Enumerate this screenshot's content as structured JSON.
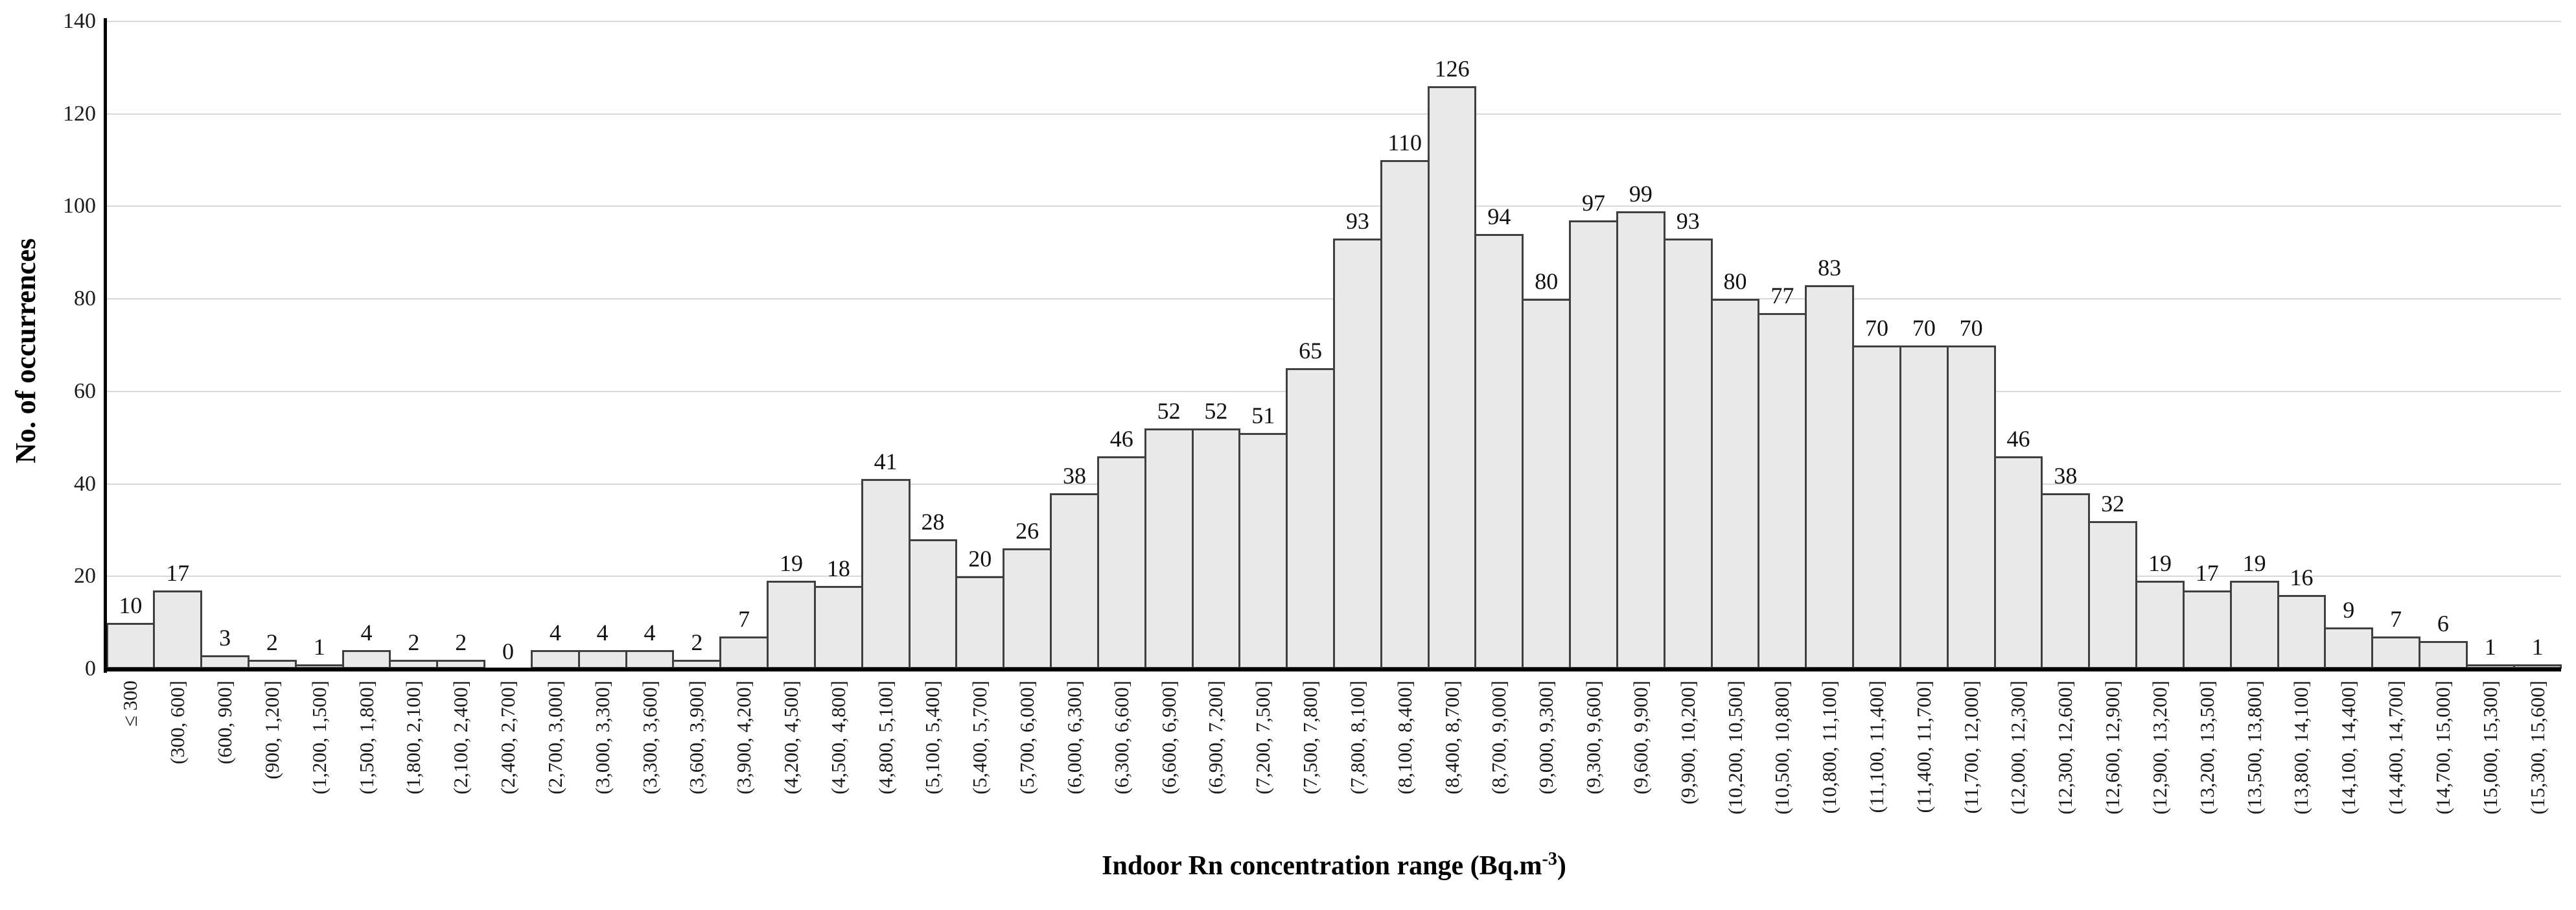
{
  "chart_data": {
    "type": "bar",
    "title": "",
    "ylabel": "No. of occurrences",
    "xlabel_base": "Indoor Rn concentration range (Bq.m",
    "xlabel_sup": "-3",
    "xlabel_close": ")",
    "ylim": [
      0,
      140
    ],
    "yticks": [
      0,
      20,
      40,
      60,
      80,
      100,
      120,
      140
    ],
    "grid": true,
    "legend": "none",
    "bar_fill": "#e9e9e9",
    "bar_border": "#404040",
    "gridline_color": "#d8d8d8",
    "axis_color": "#000000",
    "categories": [
      "≤ 300",
      "(300, 600]",
      "(600, 900]",
      "(900, 1,200]",
      "(1,200, 1,500]",
      "(1,500, 1,800]",
      "(1,800, 2,100]",
      "(2,100, 2,400]",
      "(2,400, 2,700]",
      "(2,700, 3,000]",
      "(3,000, 3,300]",
      "(3,300, 3,600]",
      "(3,600, 3,900]",
      "(3,900, 4,200]",
      "(4,200, 4,500]",
      "(4,500, 4,800]",
      "(4,800, 5,100]",
      "(5,100, 5,400]",
      "(5,400, 5,700]",
      "(5,700, 6,000]",
      "(6,000, 6,300]",
      "(6,300, 6,600]",
      "(6,600, 6,900]",
      "(6,900, 7,200]",
      "(7,200, 7,500]",
      "(7,500, 7,800]",
      "(7,800, 8,100]",
      "(8,100, 8,400]",
      "(8,400, 8,700]",
      "(8,700, 9,000]",
      "(9,000, 9,300]",
      "(9,300, 9,600]",
      "(9,600, 9,900]",
      "(9,900, 10,200]",
      "(10,200, 10,500]",
      "(10,500, 10,800]",
      "(10,800, 11,100]",
      "(11,100, 11,400]",
      "(11,400, 11,700]",
      "(11,700, 12,000]",
      "(12,000, 12,300]",
      "(12,300, 12,600]",
      "(12,600, 12,900]",
      "(12,900, 13,200]",
      "(13,200, 13,500]",
      "(13,500, 13,800]",
      "(13,800, 14,100]",
      "(14,100, 14,400]",
      "(14,400, 14,700]",
      "(14,700, 15,000]",
      "(15,000, 15,300]",
      "(15,300, 15,600]"
    ],
    "values": [
      10,
      17,
      3,
      2,
      1,
      4,
      2,
      2,
      0,
      4,
      4,
      4,
      2,
      7,
      19,
      18,
      41,
      28,
      20,
      26,
      38,
      46,
      52,
      52,
      51,
      65,
      93,
      110,
      126,
      94,
      80,
      97,
      99,
      93,
      80,
      77,
      83,
      70,
      70,
      70,
      46,
      38,
      32,
      19,
      17,
      19,
      16,
      9,
      7,
      6,
      1,
      1
    ]
  }
}
